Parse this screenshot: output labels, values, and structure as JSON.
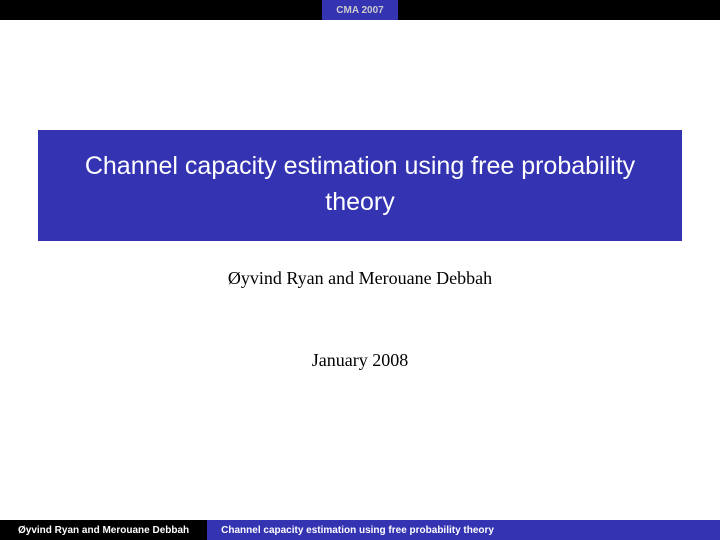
{
  "header": {
    "tab_label": "CMA 2007"
  },
  "title": "Channel capacity estimation using free probability theory",
  "authors": "Øyvind Ryan and Merouane Debbah",
  "date": "January 2008",
  "footer": {
    "left": "Øyvind Ryan and Merouane Debbah",
    "right": "Channel capacity estimation using free probability theory"
  },
  "colors": {
    "accent": "#3433b2",
    "black": "#000000",
    "white": "#ffffff"
  }
}
